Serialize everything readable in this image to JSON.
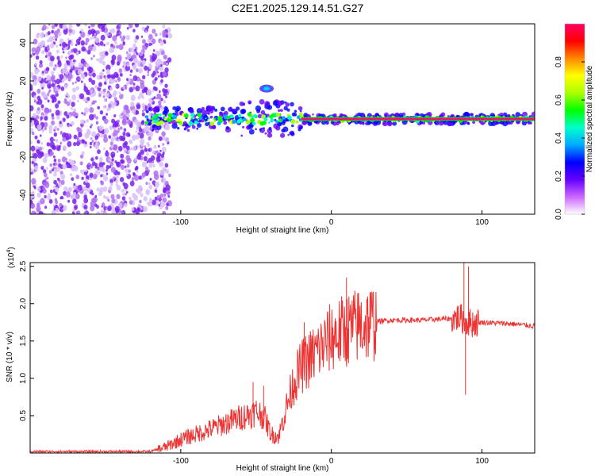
{
  "title": "C2E1.2025.129.14.51.G27",
  "chart_data": [
    {
      "type": "heatmap",
      "xlabel": "Height of straight line (km)",
      "ylabel": "Frequency (Hz)",
      "xlim": [
        -200,
        135
      ],
      "ylim": [
        -50,
        50
      ],
      "xticks": [
        -100,
        0,
        100
      ],
      "yticks": [
        -40,
        -20,
        0,
        20,
        40
      ],
      "colorbar": {
        "label": "Normalized spectral amplitude",
        "range": [
          0,
          1
        ],
        "ticks": [
          "0.0",
          "0.2",
          "0.4",
          "0.6",
          "0.8"
        ],
        "colors": [
          "#ffffff",
          "#cc66ff",
          "#6600ff",
          "#0000ff",
          "#00aaff",
          "#00ffcc",
          "#00ff00",
          "#aaff00",
          "#ffff00",
          "#ff8800",
          "#ff0000",
          "#ff0066"
        ]
      },
      "features": [
        {
          "name": "broadband noise",
          "x_range": [
            -200,
            -115
          ],
          "y_range": [
            -50,
            50
          ],
          "amplitude": 0.1
        },
        {
          "name": "main carrier line",
          "x_range": [
            -123,
            135
          ],
          "y": 0,
          "amplitude": 0.9
        },
        {
          "name": "side blob",
          "x": -43,
          "y": 16,
          "amplitude": 0.4
        }
      ]
    },
    {
      "type": "line",
      "xlabel": "Height of straight line (km)",
      "ylabel": "SNR (10 * v/v)",
      "y_scale_label": "(x10",
      "y_scale_exp": "4",
      "xlim": [
        -200,
        135
      ],
      "ylim": [
        0,
        2.55
      ],
      "xticks": [
        -100,
        0,
        100
      ],
      "yticks": [
        "0.5",
        "1.0",
        "1.5",
        "2.0",
        "2.5"
      ],
      "series": [
        {
          "color": "#ee3333",
          "x": [
            -200,
            -120,
            -110,
            -100,
            -90,
            -80,
            -70,
            -60,
            -50,
            -45,
            -40,
            -35,
            -30,
            -25,
            -20,
            -15,
            -10,
            -5,
            0,
            5,
            10,
            15,
            20,
            30,
            40,
            60,
            80,
            85,
            90,
            95,
            100,
            110,
            120,
            135
          ],
          "y": [
            0.02,
            0.02,
            0.08,
            0.18,
            0.25,
            0.32,
            0.4,
            0.48,
            0.55,
            0.5,
            0.25,
            0.22,
            0.6,
            0.95,
            1.15,
            1.25,
            1.35,
            1.45,
            1.55,
            1.6,
            1.65,
            1.68,
            1.72,
            1.76,
            1.78,
            1.78,
            1.8,
            1.82,
            1.75,
            1.74,
            1.75,
            1.74,
            1.73,
            1.7
          ]
        }
      ],
      "spikes": [
        {
          "x": -52,
          "y": 0.95
        },
        {
          "x": -45,
          "y": 0.9
        },
        {
          "x": -18,
          "y": 1.75
        },
        {
          "x": 10,
          "y": 2.35
        },
        {
          "x": 88,
          "y": 2.55
        },
        {
          "x": 91,
          "y": 2.5
        },
        {
          "x": 89,
          "y": 0.78
        }
      ]
    }
  ]
}
